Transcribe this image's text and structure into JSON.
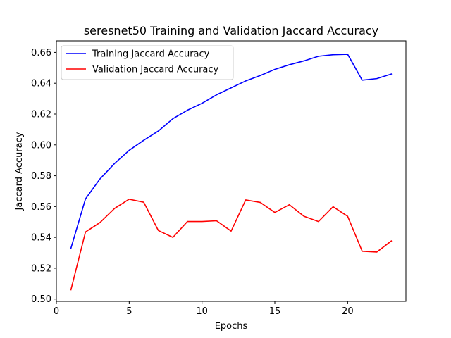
{
  "chart_data": {
    "type": "line",
    "title": "seresnet50 Training and Validation Jaccard Accuracy",
    "xlabel": "Epochs",
    "ylabel": "Jaccard Accuracy",
    "xlim": [
      0,
      24
    ],
    "ylim": [
      0.4985,
      0.6675
    ],
    "xticks": [
      0,
      5,
      10,
      15,
      20
    ],
    "yticks": [
      0.5,
      0.52,
      0.54,
      0.56,
      0.58,
      0.6,
      0.62,
      0.64,
      0.66
    ],
    "ytick_labels": [
      "0.50",
      "0.52",
      "0.54",
      "0.56",
      "0.58",
      "0.60",
      "0.62",
      "0.64",
      "0.66"
    ],
    "grid": false,
    "legend_position": "top-left",
    "x": [
      1,
      2,
      3,
      4,
      5,
      6,
      7,
      8,
      9,
      10,
      11,
      12,
      13,
      14,
      15,
      16,
      17,
      18,
      19,
      20,
      21,
      22,
      23
    ],
    "series": [
      {
        "name": "Training Jaccard Accuracy",
        "color": "#0000ff",
        "values": [
          0.533,
          0.565,
          0.578,
          0.588,
          0.5965,
          0.603,
          0.609,
          0.617,
          0.6225,
          0.627,
          0.6325,
          0.637,
          0.6415,
          0.645,
          0.649,
          0.652,
          0.6545,
          0.6575,
          0.6585,
          0.6588,
          0.642,
          0.643,
          0.646
        ]
      },
      {
        "name": "Validation Jaccard Accuracy",
        "color": "#ff0000",
        "values": [
          0.506,
          0.5435,
          0.5497,
          0.5588,
          0.5648,
          0.5628,
          0.5445,
          0.54,
          0.5503,
          0.5503,
          0.5508,
          0.5441,
          0.5643,
          0.5627,
          0.5562,
          0.5612,
          0.5537,
          0.5503,
          0.5599,
          0.5537,
          0.531,
          0.5305,
          0.5377
        ]
      }
    ]
  }
}
